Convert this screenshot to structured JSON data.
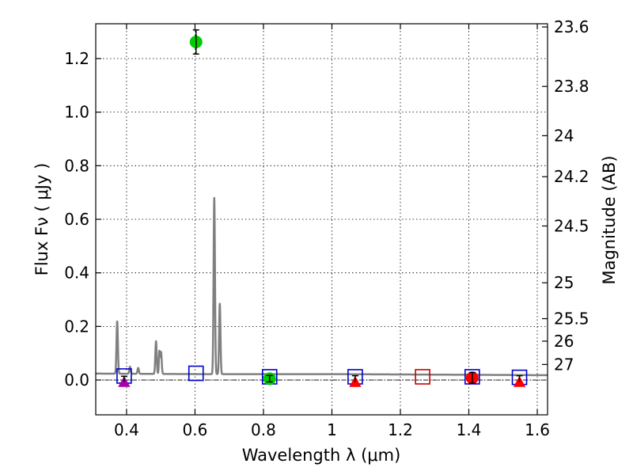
{
  "chart_data": {
    "type": "scatter",
    "xlabel": "Wavelength  λ (μm)",
    "ylabel": "Flux  Fν  ( μJy )",
    "y2label": "Magnitude (AB)",
    "xlim": [
      0.31,
      1.63
    ],
    "ylim": [
      -0.13,
      1.33
    ],
    "x_ticks": [
      0.4,
      0.6,
      0.8,
      1.0,
      1.2,
      1.4,
      1.6
    ],
    "x_tick_labels": [
      "0.4",
      "0.6",
      "0.8",
      "1",
      "1.2",
      "1.4",
      "1.6"
    ],
    "y_ticks": [
      0.0,
      0.2,
      0.4,
      0.6,
      0.8,
      1.0,
      1.2
    ],
    "y_tick_labels": [
      "0.0",
      "0.2",
      "0.4",
      "0.6",
      "0.8",
      "1.0",
      "1.2"
    ],
    "mag_ticks": [
      {
        "label": "23.6",
        "flux": 1.318
      },
      {
        "label": "23.8",
        "flux": 1.096
      },
      {
        "label": "24",
        "flux": 0.912
      },
      {
        "label": "24.2",
        "flux": 0.759
      },
      {
        "label": "24.5",
        "flux": 0.575
      },
      {
        "label": "25",
        "flux": 0.363
      },
      {
        "label": "25.5",
        "flux": 0.229
      },
      {
        "label": "26",
        "flux": 0.145
      },
      {
        "label": "27",
        "flux": 0.058
      }
    ],
    "grid": true,
    "colors": {
      "spectrum": "#808080",
      "model_box": "#0000cc",
      "model_box_red": "#cc0000",
      "green": "#00cc00",
      "red": "#ff0000",
      "magenta": "#aa00aa",
      "errorbar": "#000000",
      "zero_line": "#000000"
    },
    "spectrum": {
      "continuum": [
        [
          0.31,
          0.024
        ],
        [
          0.6,
          0.022
        ],
        [
          1.0,
          0.022
        ],
        [
          1.63,
          0.018
        ]
      ],
      "lines": [
        {
          "center": 0.3727,
          "peak": 0.22,
          "width": 0.002
        },
        {
          "center": 0.4101,
          "peak": 0.05,
          "width": 0.002
        },
        {
          "center": 0.434,
          "peak": 0.045,
          "width": 0.002
        },
        {
          "center": 0.4861,
          "peak": 0.145,
          "width": 0.002
        },
        {
          "center": 0.4959,
          "peak": 0.105,
          "width": 0.0015
        },
        {
          "center": 0.5007,
          "peak": 0.105,
          "width": 0.002
        },
        {
          "center": 0.6563,
          "peak": 0.68,
          "width": 0.002
        },
        {
          "center": 0.6724,
          "peak": 0.285,
          "width": 0.002
        }
      ]
    },
    "series": [
      {
        "name": "model_photometry",
        "marker": "square",
        "points": [
          {
            "x": 0.393,
            "y": 0.015,
            "color": "blue"
          },
          {
            "x": 0.603,
            "y": 0.025,
            "color": "blue"
          },
          {
            "x": 0.818,
            "y": 0.012,
            "color": "blue"
          },
          {
            "x": 1.068,
            "y": 0.012,
            "color": "blue"
          },
          {
            "x": 1.265,
            "y": 0.012,
            "color": "red"
          },
          {
            "x": 1.41,
            "y": 0.012,
            "color": "blue"
          },
          {
            "x": 1.548,
            "y": 0.01,
            "color": "blue"
          }
        ]
      },
      {
        "name": "detections",
        "marker": "circle",
        "points": [
          {
            "x": 0.603,
            "y": 1.262,
            "yerr": 0.045,
            "color": "green"
          },
          {
            "x": 0.818,
            "y": 0.005,
            "yerr": 0.012,
            "color": "green"
          },
          {
            "x": 1.41,
            "y": 0.008,
            "yerr": 0.02,
            "color": "red"
          }
        ]
      },
      {
        "name": "upper_limits",
        "marker": "triangle",
        "points": [
          {
            "x": 0.393,
            "y": -0.008,
            "yerr": 0.01,
            "color": "magenta"
          },
          {
            "x": 1.068,
            "y": -0.008,
            "yerr": 0.012,
            "color": "red"
          },
          {
            "x": 1.548,
            "y": -0.008,
            "yerr": 0.012,
            "color": "red"
          }
        ]
      }
    ]
  }
}
